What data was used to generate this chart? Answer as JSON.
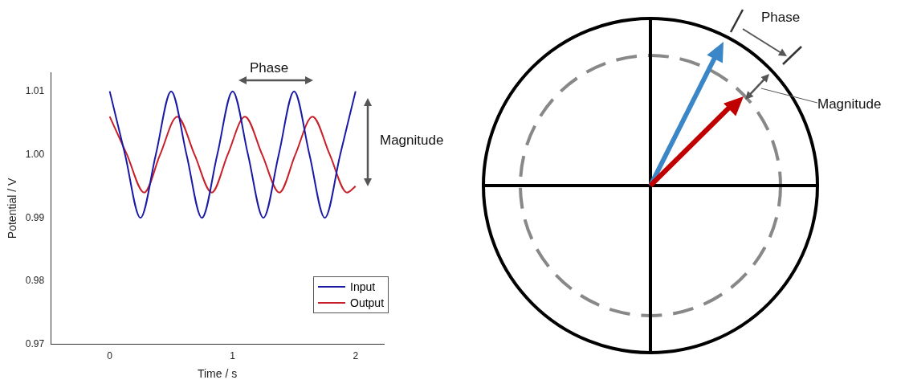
{
  "chart_data": {
    "type": "line",
    "xlabel": "Time / s",
    "ylabel": "Potential / V",
    "marker": "none",
    "line_style": "solid",
    "legend": "bottom right",
    "xlim": [
      -0.48,
      2.23
    ],
    "ylim": [
      0.97,
      1.013
    ],
    "xticks": [
      0,
      1,
      2
    ],
    "yticks": [
      0.97,
      0.98,
      0.99,
      {
        "value": 1,
        "label": "1.00"
      },
      1.01
    ],
    "annotations": [
      "Phase",
      "Magnitude",
      "Phase",
      "Magnitude"
    ],
    "series": [
      {
        "name": "Input",
        "color": "#1a1aa6",
        "x": [
          0,
          0.125,
          0.25,
          0.375,
          0.5,
          0.625,
          0.75,
          0.875,
          1,
          1.125,
          1.25,
          1.375,
          1.5,
          1.625,
          1.75,
          1.875,
          2
        ],
        "values": [
          1.01,
          1.0,
          0.99,
          1.0,
          1.01,
          1.0,
          0.99,
          1.0,
          1.01,
          1.0,
          0.99,
          1.0,
          1.01,
          1.0,
          0.99,
          1.0,
          1.01
        ]
      },
      {
        "name": "Output",
        "color": "#c8202a",
        "x": [
          0,
          0.14,
          0.28,
          0.41,
          0.55,
          0.69,
          0.83,
          0.96,
          1.1,
          1.24,
          1.38,
          1.51,
          1.65,
          1.79,
          1.93,
          2
        ],
        "values": [
          1.006,
          1.0,
          0.994,
          1.0,
          1.006,
          1.0,
          0.994,
          1.0,
          1.006,
          1.0,
          0.994,
          1.0,
          1.006,
          1.0,
          0.994,
          0.995
        ]
      }
    ]
  }
}
